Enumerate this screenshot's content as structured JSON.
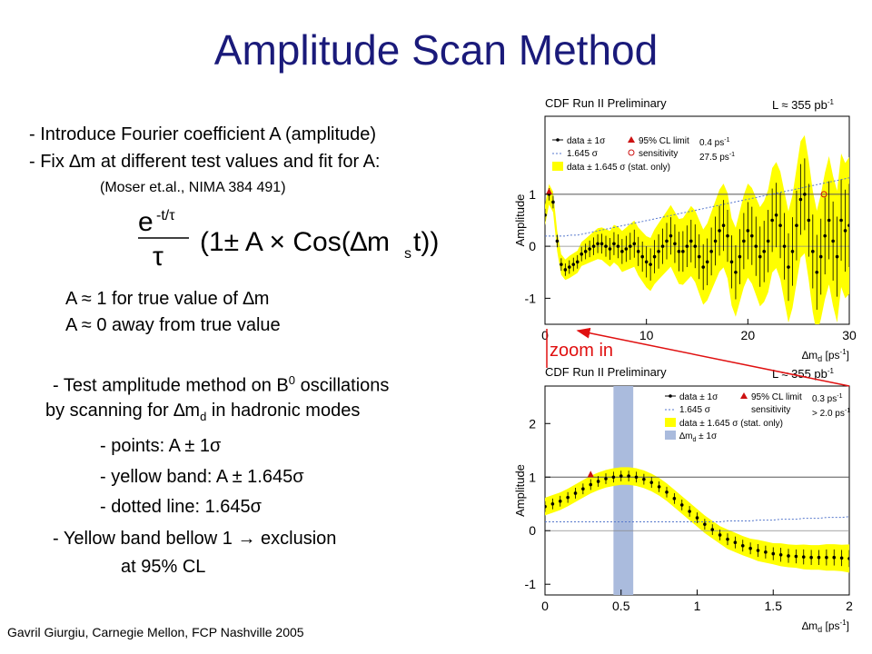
{
  "slide": {
    "title": "Amplitude Scan Method",
    "lines": {
      "l1": "- Introduce Fourier coefficient A (amplitude)",
      "l2": "- Fix ∆m at different test values and fit for A:",
      "l3": "(Moser et.al., NIMA 384 491)",
      "l4": "A ≈ 1 for true value of ∆m",
      "l5": "A ≈ 0 away from true value",
      "l6a": "- Test amplitude method on B",
      "l6sup": "0",
      "l6b": " oscillations",
      "l7a": "by scanning for ∆m",
      "l7sub": "d",
      "l7b": " in hadronic modes",
      "l8": "- points: A ± 1σ",
      "l9": "- yellow band: A ± 1.645σ",
      "l10": "- dotted line: 1.645σ",
      "l11": "- Yellow band bellow 1 → exclusion",
      "l12": "at 95% CL"
    },
    "formula": {
      "num": "e",
      "num_sup": "-t/τ",
      "den": "τ",
      "body": "(1± A × Cos(∆m",
      "body_sub": "s",
      "body_end": "t))"
    },
    "zoom_label": "zoom in",
    "footer": "Gavril Giurgiu, Carnegie Mellon, FCP Nashville 2005"
  },
  "colors": {
    "title": "#1a1a7a",
    "band": "#ffff00",
    "band_dm": "#aabbdd",
    "arrow": "#e01010",
    "limit": "#cc1111"
  },
  "chart_data": [
    {
      "type": "line",
      "header": "CDF Run II Preliminary",
      "lumi": "L ≈ 355 pb",
      "lumi_sup": "-1",
      "ylabel": "Amplitude",
      "xlabel": "∆m",
      "xlabel_sub": "d",
      "xlabel_unit": " [ps",
      "xlabel_unit_sup": "-1",
      "xlabel_end": "]",
      "xlim": [
        0,
        30
      ],
      "ylim": [
        -1.5,
        2.5
      ],
      "xticks": [
        0,
        10,
        20,
        30
      ],
      "yticks": [
        -1,
        0,
        1
      ],
      "legend": {
        "placement": "top-left",
        "data": "data ± 1σ",
        "limit": "95% CL limit",
        "limit_val": "0.4 ps",
        "limit_val_sup": "-1",
        "dotted": "1.645 σ",
        "sens": "sensitivity",
        "sens_val": "27.5 ps",
        "sens_val_sup": "-1",
        "band": "data ± 1.645 σ (stat. only)"
      },
      "limit_x": 0.4,
      "sensitivity_x": 27.5,
      "x": [
        0,
        0.4,
        0.8,
        1.2,
        1.6,
        2,
        2.4,
        2.8,
        3.2,
        3.6,
        4,
        4.4,
        4.8,
        5.2,
        5.6,
        6,
        6.4,
        6.8,
        7.2,
        7.6,
        8,
        8.4,
        8.8,
        9.2,
        9.6,
        10,
        10.4,
        10.8,
        11.2,
        11.6,
        12,
        12.4,
        12.8,
        13.2,
        13.6,
        14,
        14.4,
        14.8,
        15.2,
        15.6,
        16,
        16.4,
        16.8,
        17.2,
        17.6,
        18,
        18.4,
        18.8,
        19.2,
        19.6,
        20,
        20.4,
        20.8,
        21.2,
        21.6,
        22,
        22.4,
        22.8,
        23.2,
        23.6,
        24,
        24.4,
        24.8,
        25.2,
        25.6,
        26,
        26.4,
        26.8,
        27.2,
        27.6,
        28,
        28.4,
        28.8,
        29.2,
        29.6,
        30
      ],
      "values": [
        0.6,
        1.0,
        0.85,
        0.1,
        -0.35,
        -0.45,
        -0.4,
        -0.35,
        -0.3,
        -0.15,
        -0.1,
        -0.05,
        0.0,
        0.05,
        0.05,
        0.0,
        -0.05,
        0.05,
        0.0,
        -0.1,
        -0.05,
        0.0,
        0.05,
        -0.1,
        -0.2,
        -0.3,
        -0.35,
        -0.2,
        -0.1,
        0.0,
        0.1,
        0.2,
        0.05,
        -0.1,
        -0.1,
        0.0,
        0.1,
        0.0,
        -0.2,
        -0.4,
        -0.3,
        -0.1,
        0.1,
        0.3,
        0.4,
        0.2,
        -0.3,
        -0.5,
        -0.2,
        0.1,
        0.3,
        0.2,
        0.0,
        -0.2,
        -0.1,
        0.1,
        0.5,
        0.6,
        0.4,
        0.0,
        -0.4,
        -0.1,
        0.4,
        0.9,
        1.0,
        0.5,
        -0.1,
        -0.5,
        -0.2,
        0.2,
        0.5,
        0.1,
        -0.2,
        0.5,
        0.3,
        0.4
      ],
      "errors": [
        0.12,
        0.12,
        0.12,
        0.12,
        0.12,
        0.12,
        0.13,
        0.13,
        0.13,
        0.14,
        0.15,
        0.16,
        0.17,
        0.18,
        0.19,
        0.2,
        0.21,
        0.22,
        0.23,
        0.24,
        0.25,
        0.26,
        0.27,
        0.28,
        0.29,
        0.3,
        0.31,
        0.32,
        0.33,
        0.34,
        0.35,
        0.36,
        0.37,
        0.38,
        0.39,
        0.4,
        0.41,
        0.42,
        0.43,
        0.44,
        0.45,
        0.46,
        0.47,
        0.48,
        0.49,
        0.5,
        0.51,
        0.52,
        0.53,
        0.54,
        0.55,
        0.56,
        0.57,
        0.58,
        0.59,
        0.6,
        0.61,
        0.62,
        0.63,
        0.64,
        0.65,
        0.66,
        0.67,
        0.68,
        0.69,
        0.7,
        0.71,
        0.72,
        0.73,
        0.74,
        0.75,
        0.76,
        0.77,
        0.78,
        0.79,
        0.8
      ]
    },
    {
      "type": "line",
      "header": "CDF Run II Preliminary",
      "lumi": "L ≈ 355 pb",
      "lumi_sup": "-1",
      "ylabel": "Amplitude",
      "xlabel": "∆m",
      "xlabel_sub": "d",
      "xlabel_unit": " [ps",
      "xlabel_unit_sup": "-1",
      "xlabel_end": "]",
      "xlim": [
        0,
        2
      ],
      "ylim": [
        -1.2,
        2.7
      ],
      "xticks": [
        0,
        0.5,
        1,
        1.5,
        2
      ],
      "yticks": [
        -1,
        0,
        1,
        2
      ],
      "legend": {
        "placement": "top-right",
        "data": "data ± 1σ",
        "limit": "95% CL limit",
        "limit_val": "0.3 ps",
        "limit_val_sup": "-1",
        "dotted": "1.645 σ",
        "sens": "sensitivity",
        "sens_val": "> 2.0 ps",
        "sens_val_sup": "-1",
        "band": "data ± 1.645 σ (stat. only)",
        "dmband": "∆m",
        "dmband_sub": "d",
        "dmband_end": " ± 1σ"
      },
      "limit_x": 0.3,
      "dm_band": [
        0.45,
        0.58
      ],
      "x": [
        0,
        0.05,
        0.1,
        0.15,
        0.2,
        0.25,
        0.3,
        0.35,
        0.4,
        0.45,
        0.5,
        0.55,
        0.6,
        0.65,
        0.7,
        0.75,
        0.8,
        0.85,
        0.9,
        0.95,
        1,
        1.05,
        1.1,
        1.15,
        1.2,
        1.25,
        1.3,
        1.35,
        1.4,
        1.45,
        1.5,
        1.55,
        1.6,
        1.65,
        1.7,
        1.75,
        1.8,
        1.85,
        1.9,
        1.95,
        2
      ],
      "values": [
        0.45,
        0.5,
        0.55,
        0.62,
        0.7,
        0.78,
        0.86,
        0.92,
        0.97,
        1.0,
        1.02,
        1.02,
        1.0,
        0.96,
        0.9,
        0.82,
        0.72,
        0.6,
        0.48,
        0.36,
        0.24,
        0.12,
        0.02,
        -0.08,
        -0.16,
        -0.22,
        -0.28,
        -0.33,
        -0.37,
        -0.4,
        -0.43,
        -0.45,
        -0.47,
        -0.48,
        -0.49,
        -0.5,
        -0.5,
        -0.5,
        -0.5,
        -0.51,
        -0.52
      ],
      "errors": [
        0.1,
        0.1,
        0.1,
        0.1,
        0.1,
        0.1,
        0.1,
        0.1,
        0.1,
        0.1,
        0.1,
        0.1,
        0.1,
        0.1,
        0.1,
        0.1,
        0.1,
        0.1,
        0.1,
        0.1,
        0.1,
        0.1,
        0.1,
        0.1,
        0.11,
        0.11,
        0.11,
        0.11,
        0.12,
        0.12,
        0.12,
        0.13,
        0.13,
        0.13,
        0.14,
        0.14,
        0.14,
        0.15,
        0.15,
        0.15,
        0.16
      ]
    }
  ]
}
